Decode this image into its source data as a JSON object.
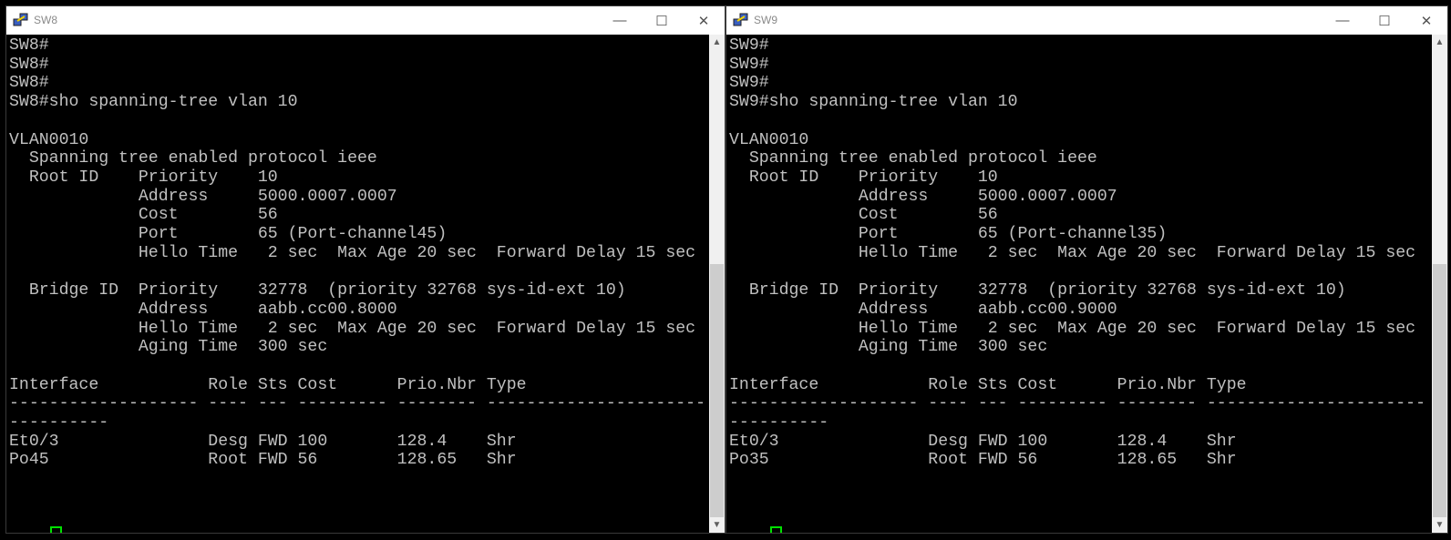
{
  "windows": [
    {
      "title": "SW8",
      "app_icon": "putty-icon",
      "scroll_position_percent": 100,
      "lines": [
        "SW8#",
        "SW8#",
        "SW8#",
        "SW8#sho spanning-tree vlan 10",
        "",
        "VLAN0010",
        "  Spanning tree enabled protocol ieee",
        "  Root ID    Priority    10",
        "             Address     5000.0007.0007",
        "             Cost        56",
        "             Port        65 (Port-channel45)",
        "             Hello Time   2 sec  Max Age 20 sec  Forward Delay 15 sec",
        "",
        "  Bridge ID  Priority    32778  (priority 32768 sys-id-ext 10)",
        "             Address     aabb.cc00.8000",
        "             Hello Time   2 sec  Max Age 20 sec  Forward Delay 15 sec",
        "             Aging Time  300 sec",
        "",
        "Interface           Role Sts Cost      Prio.Nbr Type",
        "------------------- ---- --- --------- -------- ----------------------",
        "----------",
        "Et0/3               Desg FWD 100       128.4    Shr",
        "Po45                Root FWD 56        128.65   Shr",
        "",
        "",
        ""
      ],
      "prompt": "SW8#"
    },
    {
      "title": "SW9",
      "app_icon": "putty-icon",
      "scroll_position_percent": 100,
      "lines": [
        "SW9#",
        "SW9#",
        "SW9#",
        "SW9#sho spanning-tree vlan 10",
        "",
        "VLAN0010",
        "  Spanning tree enabled protocol ieee",
        "  Root ID    Priority    10",
        "             Address     5000.0007.0007",
        "             Cost        56",
        "             Port        65 (Port-channel35)",
        "             Hello Time   2 sec  Max Age 20 sec  Forward Delay 15 sec",
        "",
        "  Bridge ID  Priority    32778  (priority 32768 sys-id-ext 10)",
        "             Address     aabb.cc00.9000",
        "             Hello Time   2 sec  Max Age 20 sec  Forward Delay 15 sec",
        "             Aging Time  300 sec",
        "",
        "Interface           Role Sts Cost      Prio.Nbr Type",
        "------------------- ---- --- --------- -------- ----------------------",
        "----------",
        "Et0/3               Desg FWD 100       128.4    Shr",
        "Po35                Root FWD 56        128.65   Shr",
        "",
        "",
        ""
      ],
      "prompt": "SW9#"
    }
  ],
  "controls": {
    "minimize": "—",
    "maximize": "☐",
    "close": "✕"
  },
  "colors": {
    "terminal_text": "#c0c0c0",
    "cursor": "#00e000",
    "background": "#000000"
  }
}
